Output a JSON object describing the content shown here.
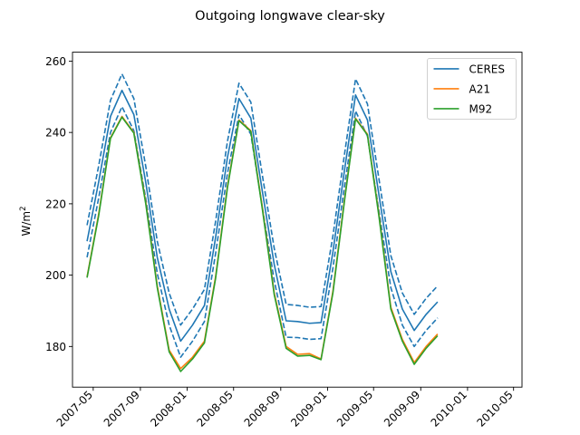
{
  "chart_data": {
    "type": "line",
    "title": "Outgoing longwave clear-sky",
    "xlabel": "",
    "ylabel": "W/m",
    "ylabel_sup": "2",
    "x": [
      "2007-04",
      "2007-05",
      "2007-06",
      "2007-07",
      "2007-08",
      "2007-09",
      "2007-10",
      "2007-11",
      "2007-12",
      "2008-01",
      "2008-02",
      "2008-03",
      "2008-04",
      "2008-05",
      "2008-06",
      "2008-07",
      "2008-08",
      "2008-09",
      "2008-10",
      "2008-11",
      "2008-12",
      "2009-01",
      "2009-02",
      "2009-03",
      "2009-04",
      "2009-05",
      "2009-06",
      "2009-07",
      "2009-08",
      "2009-09",
      "2009-10",
      "2009-11",
      "2009-12",
      "2010-01",
      "2010-02",
      "2010-03"
    ],
    "xlim": [
      "2007-03-08",
      "2010-05-23"
    ],
    "ylim": [
      168.6,
      262.5
    ],
    "x_ticks": [
      "2007-05",
      "2007-09",
      "2008-01",
      "2008-05",
      "2008-09",
      "2009-01",
      "2009-05",
      "2009-09",
      "2010-01",
      "2010-05"
    ],
    "y_ticks": [
      180,
      200,
      220,
      240,
      260
    ],
    "grid": false,
    "legend_position": "top-right",
    "series": [
      {
        "name": "CERES",
        "color": "#1f77b4",
        "style": "solid",
        "values": [
          209.5,
          226.0,
          244.5,
          251.8,
          245.0,
          226.0,
          205.0,
          190.5,
          181.5,
          186.0,
          191.5,
          210.5,
          233.0,
          249.5,
          244.0,
          223.5,
          203.0,
          187.2,
          187.0,
          186.5,
          186.7,
          206.5,
          230.0,
          250.5,
          243.5,
          222.5,
          201.0,
          190.5,
          184.5,
          189.0,
          192.5,
          null,
          null,
          null,
          null,
          null
        ]
      },
      {
        "name": "CERES upper bound",
        "color": "#1f77b4",
        "style": "dashed",
        "values": [
          214.0,
          230.5,
          249.0,
          256.4,
          249.5,
          230.5,
          209.5,
          195.0,
          186.0,
          190.5,
          196.0,
          215.0,
          237.5,
          253.8,
          248.5,
          228.0,
          207.5,
          191.8,
          191.5,
          191.0,
          191.2,
          211.0,
          234.5,
          255.0,
          248.0,
          227.0,
          205.5,
          195.0,
          189.0,
          193.5,
          197.0,
          null,
          null,
          null,
          null,
          null
        ]
      },
      {
        "name": "CERES lower bound",
        "color": "#1f77b4",
        "style": "dashed",
        "values": [
          205.0,
          221.5,
          240.0,
          247.2,
          240.5,
          221.5,
          200.5,
          186.0,
          177.0,
          181.5,
          187.0,
          206.0,
          228.5,
          245.0,
          239.5,
          219.0,
          198.5,
          182.6,
          182.5,
          182.0,
          182.2,
          202.0,
          225.5,
          246.0,
          239.0,
          218.0,
          196.5,
          186.0,
          180.0,
          184.5,
          188.0,
          null,
          null,
          null,
          null,
          null
        ]
      },
      {
        "name": "A21",
        "color": "#ff7f0e",
        "style": "solid",
        "values": [
          199.5,
          217.0,
          238.5,
          244.5,
          240.0,
          220.5,
          197.0,
          179.0,
          173.8,
          177.0,
          181.5,
          199.5,
          225.0,
          243.5,
          240.5,
          219.0,
          195.0,
          180.0,
          177.8,
          178.0,
          176.5,
          195.5,
          222.0,
          244.0,
          239.5,
          217.0,
          191.0,
          182.0,
          175.5,
          180.0,
          183.5,
          null,
          null,
          null,
          null,
          null
        ]
      },
      {
        "name": "M92",
        "color": "#2ca02c",
        "style": "solid",
        "values": [
          199.3,
          216.5,
          238.3,
          244.3,
          239.8,
          220.0,
          196.5,
          178.5,
          173.0,
          176.5,
          181.0,
          199.0,
          224.5,
          243.3,
          240.3,
          218.5,
          194.5,
          179.5,
          177.3,
          177.5,
          176.3,
          195.0,
          221.5,
          243.8,
          239.3,
          216.5,
          190.5,
          181.5,
          175.0,
          179.5,
          183.0,
          null,
          null,
          null,
          null,
          null
        ]
      }
    ],
    "legend": [
      "CERES",
      "A21",
      "M92"
    ]
  }
}
